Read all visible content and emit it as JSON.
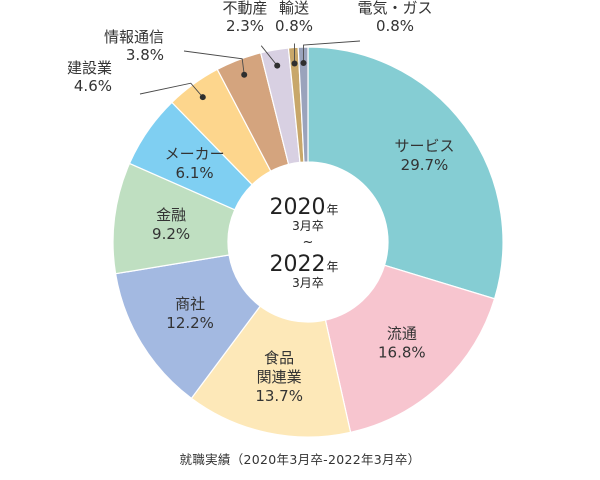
{
  "chart_data": {
    "type": "pie",
    "categories": [
      "サービス",
      "流通",
      "食品\n関連業",
      "商社",
      "金融",
      "メーカー",
      "建設業",
      "情報通信",
      "不動産",
      "輸送",
      "電気・ガス"
    ],
    "values": [
      29.7,
      16.8,
      13.7,
      12.2,
      9.2,
      6.1,
      4.6,
      3.8,
      2.3,
      0.8,
      0.8
    ],
    "value_labels": [
      "29.7%",
      "16.8%",
      "13.7%",
      "12.2%",
      "9.2%",
      "6.1%",
      "4.6%",
      "3.8%",
      "2.3%",
      "0.8%",
      "0.8%"
    ],
    "colors": [
      "#85cdd3",
      "#f7c5cf",
      "#fde8b8",
      "#a3b9e1",
      "#bfdfc1",
      "#7fcff2",
      "#fdd68d",
      "#d4a47e",
      "#d8d0e2",
      "#c8a76a",
      "#9aa3bc"
    ],
    "donut": true,
    "center": {
      "line1_big": "2020",
      "line1_small": "年",
      "line2": "3月卒",
      "tilde": "~",
      "line3_big": "2022",
      "line3_small": "年",
      "line4": "3月卒"
    },
    "caption": "就職実績（2020年3月卒-2022年3月卒）"
  }
}
